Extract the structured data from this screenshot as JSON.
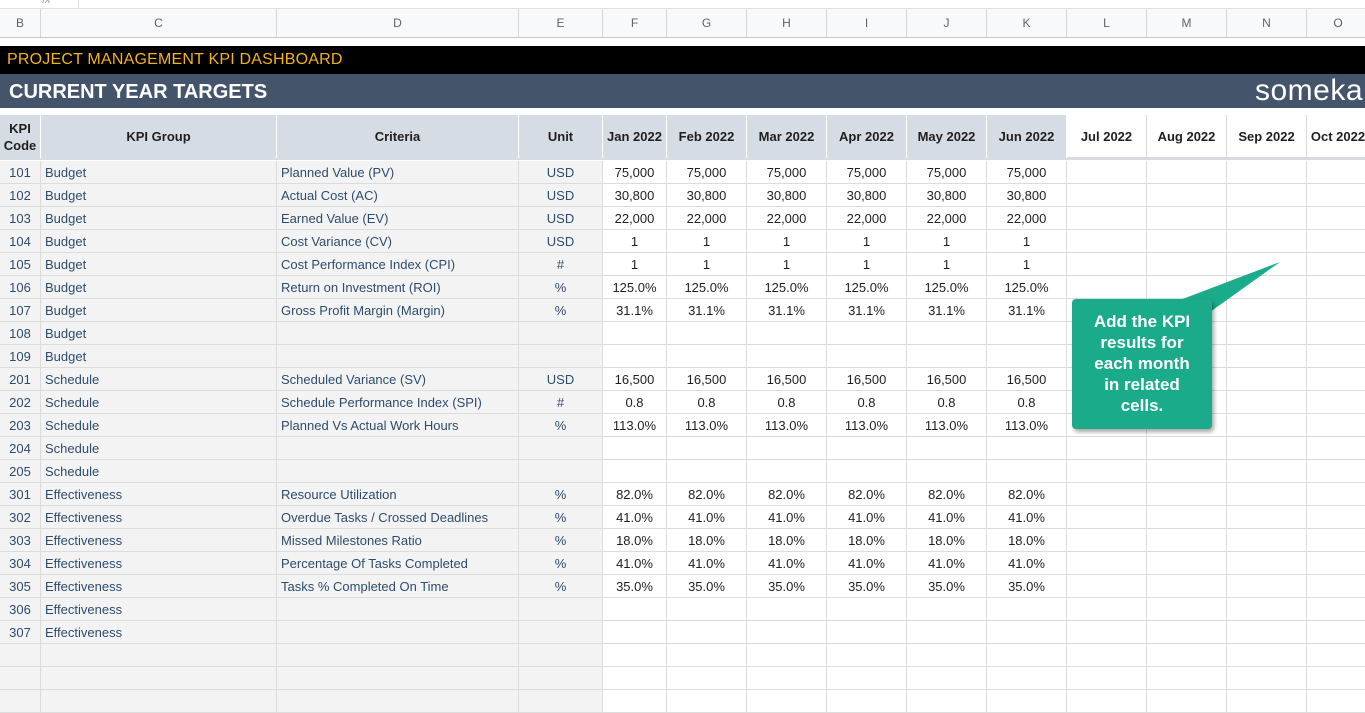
{
  "columns": [
    {
      "letter": "B"
    },
    {
      "letter": "C"
    },
    {
      "letter": "D"
    },
    {
      "letter": "E"
    },
    {
      "letter": "F"
    },
    {
      "letter": "G"
    },
    {
      "letter": "H"
    },
    {
      "letter": "I"
    },
    {
      "letter": "J"
    },
    {
      "letter": "K"
    },
    {
      "letter": "L"
    },
    {
      "letter": "M"
    },
    {
      "letter": "N"
    },
    {
      "letter": "O"
    }
  ],
  "formula_bar": {
    "fx": "fx"
  },
  "title": "PROJECT MANAGEMENT KPI DASHBOARD",
  "subtitle": "CURRENT YEAR TARGETS",
  "logo": "someka",
  "colors": {
    "title_bg": "#000000",
    "title_text": "#f5b21b",
    "subtitle_bg": "#44546a",
    "header_grey": "#d6dce4",
    "callout": "#1aab8b"
  },
  "headers": {
    "kpi_code": "KPI Code",
    "kpi_group": "KPI Group",
    "criteria": "Criteria",
    "unit": "Unit",
    "months": [
      "Jan 2022",
      "Feb 2022",
      "Mar 2022",
      "Apr 2022",
      "May 2022",
      "Jun 2022",
      "Jul 2022",
      "Aug 2022",
      "Sep 2022",
      "Oct 2022"
    ]
  },
  "rows": [
    {
      "code": "101",
      "group": "Budget",
      "criteria": "Planned Value (PV)",
      "unit": "USD",
      "values": [
        "75,000",
        "75,000",
        "75,000",
        "75,000",
        "75,000",
        "75,000"
      ]
    },
    {
      "code": "102",
      "group": "Budget",
      "criteria": "Actual Cost (AC)",
      "unit": "USD",
      "values": [
        "30,800",
        "30,800",
        "30,800",
        "30,800",
        "30,800",
        "30,800"
      ]
    },
    {
      "code": "103",
      "group": "Budget",
      "criteria": "Earned Value (EV)",
      "unit": "USD",
      "values": [
        "22,000",
        "22,000",
        "22,000",
        "22,000",
        "22,000",
        "22,000"
      ]
    },
    {
      "code": "104",
      "group": "Budget",
      "criteria": "Cost Variance (CV)",
      "unit": "USD",
      "values": [
        "1",
        "1",
        "1",
        "1",
        "1",
        "1"
      ]
    },
    {
      "code": "105",
      "group": "Budget",
      "criteria": "Cost Performance Index (CPI)",
      "unit": "#",
      "values": [
        "1",
        "1",
        "1",
        "1",
        "1",
        "1"
      ]
    },
    {
      "code": "106",
      "group": "Budget",
      "criteria": "Return on Investment (ROI)",
      "unit": "%",
      "values": [
        "125.0%",
        "125.0%",
        "125.0%",
        "125.0%",
        "125.0%",
        "125.0%"
      ]
    },
    {
      "code": "107",
      "group": "Budget",
      "criteria": "Gross Profit Margin (Margin)",
      "unit": "%",
      "values": [
        "31.1%",
        "31.1%",
        "31.1%",
        "31.1%",
        "31.1%",
        "31.1%"
      ]
    },
    {
      "code": "108",
      "group": "Budget",
      "criteria": "",
      "unit": "",
      "values": [
        "",
        "",
        "",
        "",
        "",
        ""
      ]
    },
    {
      "code": "109",
      "group": "Budget",
      "criteria": "",
      "unit": "",
      "values": [
        "",
        "",
        "",
        "",
        "",
        ""
      ]
    },
    {
      "code": "201",
      "group": "Schedule",
      "criteria": "Scheduled Variance (SV)",
      "unit": "USD",
      "values": [
        "16,500",
        "16,500",
        "16,500",
        "16,500",
        "16,500",
        "16,500"
      ]
    },
    {
      "code": "202",
      "group": "Schedule",
      "criteria": "Schedule Performance Index (SPI)",
      "unit": "#",
      "values": [
        "0.8",
        "0.8",
        "0.8",
        "0.8",
        "0.8",
        "0.8"
      ]
    },
    {
      "code": "203",
      "group": "Schedule",
      "criteria": "Planned Vs Actual Work Hours",
      "unit": "%",
      "values": [
        "113.0%",
        "113.0%",
        "113.0%",
        "113.0%",
        "113.0%",
        "113.0%"
      ]
    },
    {
      "code": "204",
      "group": "Schedule",
      "criteria": "",
      "unit": "",
      "values": [
        "",
        "",
        "",
        "",
        "",
        ""
      ]
    },
    {
      "code": "205",
      "group": "Schedule",
      "criteria": "",
      "unit": "",
      "values": [
        "",
        "",
        "",
        "",
        "",
        ""
      ]
    },
    {
      "code": "301",
      "group": "Effectiveness",
      "criteria": "Resource Utilization",
      "unit": "%",
      "values": [
        "82.0%",
        "82.0%",
        "82.0%",
        "82.0%",
        "82.0%",
        "82.0%"
      ]
    },
    {
      "code": "302",
      "group": "Effectiveness",
      "criteria": "Overdue Tasks / Crossed Deadlines",
      "unit": "%",
      "values": [
        "41.0%",
        "41.0%",
        "41.0%",
        "41.0%",
        "41.0%",
        "41.0%"
      ]
    },
    {
      "code": "303",
      "group": "Effectiveness",
      "criteria": "Missed Milestones Ratio",
      "unit": "%",
      "values": [
        "18.0%",
        "18.0%",
        "18.0%",
        "18.0%",
        "18.0%",
        "18.0%"
      ]
    },
    {
      "code": "304",
      "group": "Effectiveness",
      "criteria": "Percentage Of Tasks Completed",
      "unit": "%",
      "values": [
        "41.0%",
        "41.0%",
        "41.0%",
        "41.0%",
        "41.0%",
        "41.0%"
      ]
    },
    {
      "code": "305",
      "group": "Effectiveness",
      "criteria": "Tasks % Completed On Time",
      "unit": "%",
      "values": [
        "35.0%",
        "35.0%",
        "35.0%",
        "35.0%",
        "35.0%",
        "35.0%"
      ]
    },
    {
      "code": "306",
      "group": "Effectiveness",
      "criteria": "",
      "unit": "",
      "values": [
        "",
        "",
        "",
        "",
        "",
        ""
      ]
    },
    {
      "code": "307",
      "group": "Effectiveness",
      "criteria": "",
      "unit": "",
      "values": [
        "",
        "",
        "",
        "",
        "",
        ""
      ]
    },
    {
      "code": "",
      "group": "",
      "criteria": "",
      "unit": "",
      "values": [
        "",
        "",
        "",
        "",
        "",
        ""
      ]
    },
    {
      "code": "",
      "group": "",
      "criteria": "",
      "unit": "",
      "values": [
        "",
        "",
        "",
        "",
        "",
        ""
      ]
    },
    {
      "code": "",
      "group": "",
      "criteria": "",
      "unit": "",
      "values": [
        "",
        "",
        "",
        "",
        "",
        ""
      ]
    }
  ],
  "callout": {
    "text_lines": [
      "Add the KPI",
      "results for",
      "each month",
      "in related",
      "cells."
    ]
  }
}
